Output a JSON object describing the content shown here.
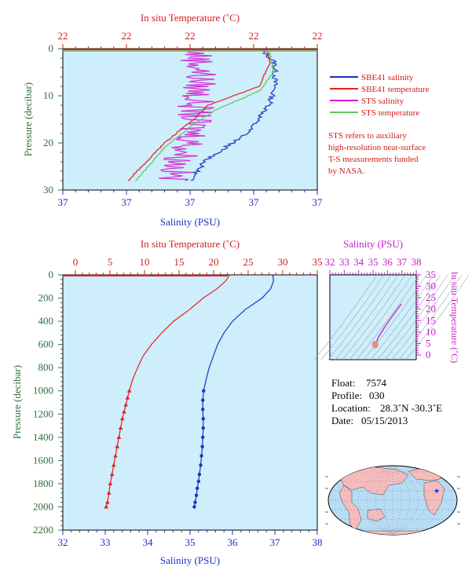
{
  "colors": {
    "panel_bg": "#cdeefa",
    "salinity": "#1c2fc8",
    "temperature": "#e2211c",
    "sts_salinity": "#d21ad0",
    "sts_temperature": "#5cc85c",
    "axis_blue": "#1c2fc8",
    "axis_red": "#d01c1c",
    "axis_magenta": "#c81cc8",
    "axis_green": "#2e6e3e",
    "map_ocean": "#b8dcf3",
    "map_land": "#f6bcbc"
  },
  "top_chart": {
    "top_axis_title": "In situ Temperature (˚C)",
    "top_ticks": [
      "22",
      "22",
      "22",
      "22",
      "22"
    ],
    "left_axis_title": "Pressure (decibar)",
    "left_ticks": [
      "0",
      "10",
      "20",
      "30"
    ],
    "bottom_axis_title": "Salinity (PSU)",
    "bottom_ticks": [
      "37",
      "37",
      "37",
      "37",
      "37"
    ],
    "legend": [
      {
        "label": "SBE41 salinity",
        "color": "#1c2fc8"
      },
      {
        "label": "SBE41 temperature",
        "color": "#e2211c"
      },
      {
        "label": "STS salinity",
        "color": "#d21ad0"
      },
      {
        "label": "STS temperature",
        "color": "#5cc85c"
      }
    ],
    "note_lines": [
      "STS refers to auxiliary",
      "high-resolution near-surface",
      "T-S measurements funded",
      "by NASA."
    ]
  },
  "main_chart": {
    "top_axis_title": "In situ Temperature (˚C)",
    "top_ticks": [
      "0",
      "5",
      "10",
      "15",
      "20",
      "25",
      "30",
      "35"
    ],
    "left_axis_title": "Pressure (decibar)",
    "left_ticks": [
      "0",
      "200",
      "400",
      "600",
      "800",
      "1000",
      "1200",
      "1400",
      "1600",
      "1800",
      "2000",
      "2200"
    ],
    "bottom_axis_title": "Salinity (PSU)",
    "bottom_ticks": [
      "32",
      "33",
      "34",
      "35",
      "36",
      "37",
      "38"
    ]
  },
  "ts_chart": {
    "top_axis_title": "Salinity (PSU)",
    "top_ticks": [
      "32",
      "33",
      "34",
      "35",
      "36",
      "37",
      "38"
    ],
    "right_axis_title": "In situ Temperature (˚C)",
    "right_ticks": [
      "0",
      "5",
      "10",
      "15",
      "20",
      "25",
      "30",
      "35"
    ]
  },
  "info": {
    "float_label": "Float:",
    "float_value": "7574",
    "profile_label": "Profile:",
    "profile_value": "030",
    "location_label": "Location:",
    "location_value": "28.3˚N  -30.3˚E",
    "date_label": "Date:",
    "date_value": "05/15/2013"
  },
  "chart_data": [
    {
      "type": "line",
      "title": "",
      "xlabel": "Salinity (PSU)",
      "x2label": "In situ Temperature (˚C)",
      "ylabel": "Pressure (decibar)",
      "ylim": [
        30,
        0
      ],
      "series": [
        {
          "name": "SBE41 salinity",
          "x": [
            37.0,
            37.05,
            37.05,
            37.03,
            36.95,
            36.8,
            36.75
          ],
          "y": [
            0,
            3,
            8,
            12,
            18,
            24,
            28
          ]
        },
        {
          "name": "SBE41 temperature",
          "x": [
            22.3,
            22.35,
            22.2,
            21.5,
            21.3,
            20.9,
            20.4
          ],
          "y": [
            0,
            3,
            8,
            12,
            15,
            20,
            28
          ]
        },
        {
          "name": "STS salinity",
          "x": [
            36.97,
            36.98,
            36.97,
            36.96,
            36.96,
            36.92,
            36.9
          ],
          "y": [
            1,
            5,
            10,
            15,
            19,
            24,
            28
          ]
        },
        {
          "name": "STS temperature",
          "x": [
            22.35,
            22.4,
            22.2,
            21.6,
            21.3,
            20.9,
            20.5
          ],
          "y": [
            1,
            5,
            9,
            13,
            16,
            21,
            28
          ]
        }
      ]
    },
    {
      "type": "line",
      "title": "",
      "xlabel": "Salinity (PSU)",
      "x2label": "In situ Temperature (˚C)",
      "ylabel": "Pressure (decibar)",
      "xlim": [
        32,
        38
      ],
      "x2lim": [
        0,
        35
      ],
      "ylim": [
        2200,
        0
      ],
      "series": [
        {
          "name": "Salinity",
          "x": [
            36.95,
            36.97,
            36.9,
            36.7,
            36.3,
            36.0,
            35.8,
            35.65,
            35.55,
            35.45,
            35.38,
            35.32,
            35.3,
            35.3,
            35.31,
            35.31,
            35.3,
            35.29,
            35.27,
            35.25,
            35.22,
            35.2,
            35.17,
            35.15,
            35.12,
            35.1
          ],
          "y": [
            0,
            50,
            120,
            200,
            300,
            400,
            500,
            600,
            700,
            800,
            900,
            1000,
            1080,
            1160,
            1240,
            1320,
            1400,
            1480,
            1560,
            1640,
            1720,
            1780,
            1840,
            1900,
            1960,
            2000
          ]
        },
        {
          "name": "Temperature",
          "x": [
            22.3,
            21.8,
            20.5,
            18.5,
            16.5,
            14.2,
            12.5,
            11.0,
            9.8,
            9.0,
            8.3,
            7.8,
            7.55,
            7.3,
            7.05,
            6.8,
            6.55,
            6.3,
            6.05,
            5.8,
            5.55,
            5.3,
            5.05,
            4.85,
            4.65,
            4.45
          ],
          "y": [
            0,
            50,
            120,
            200,
            300,
            400,
            500,
            600,
            700,
            800,
            900,
            1000,
            1060,
            1120,
            1180,
            1240,
            1320,
            1400,
            1480,
            1560,
            1640,
            1720,
            1800,
            1880,
            1960,
            2000
          ]
        }
      ]
    },
    {
      "type": "line",
      "title": "",
      "xlabel": "Salinity (PSU)",
      "ylabel": "In situ Temperature (˚C)",
      "xlim": [
        32,
        38
      ],
      "ylim": [
        -3,
        35
      ],
      "series": [
        {
          "name": "T-S",
          "x": [
            35.15,
            35.25,
            35.4,
            35.7,
            36.0,
            36.4,
            36.75,
            36.97
          ],
          "y": [
            4.5,
            6.0,
            8.0,
            11.0,
            14.0,
            17.5,
            20.5,
            22.3
          ]
        }
      ]
    }
  ]
}
